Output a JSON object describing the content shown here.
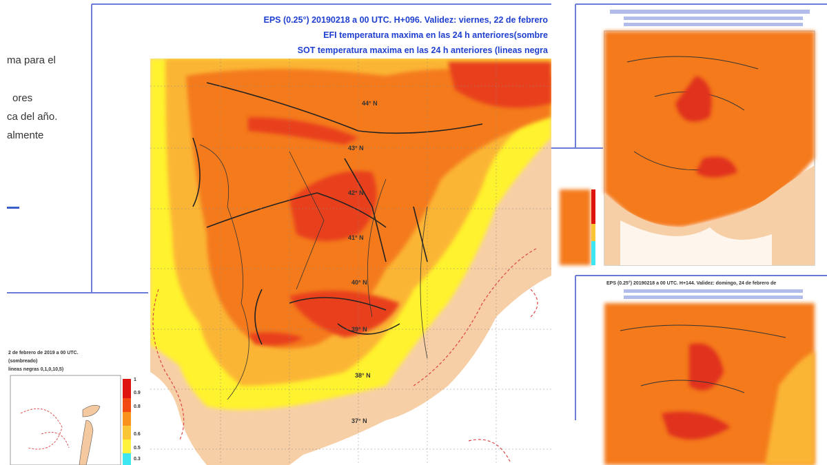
{
  "slide_text": [
    "ma para el",
    "ores",
    "ca del año.",
    "almente"
  ],
  "main_map": {
    "title_lines": [
      "EPS (0.25°) 20190218 a 00 UTC.  H+096. Validez: viernes, 22 de febrero",
      "EFI temperatura maxima en las 24 h anteriores(sombre",
      "SOT temperatura maxima en las 24 h anteriores (lineas negra"
    ],
    "lat_labels": [
      "44° N",
      "43° N",
      "42° N",
      "41° N",
      "40° N",
      "39° N",
      "38° N",
      "37° N"
    ]
  },
  "inset_bottom_left": {
    "title_lines": [
      "2 de febrero de 2019  a  00 UTC.",
      "(sombreado)",
      "lineas negras 0,1,0,10,5)"
    ],
    "legend_labels": [
      "1",
      "0.9",
      "0.8",
      "0.6",
      "0.5",
      "0.3"
    ]
  },
  "right_bottom": {
    "title_lines": [
      "EPS (0.25°) 20190218 a 00 UTC. H+144. Validez: domingo, 24 de febrero de"
    ]
  }
}
